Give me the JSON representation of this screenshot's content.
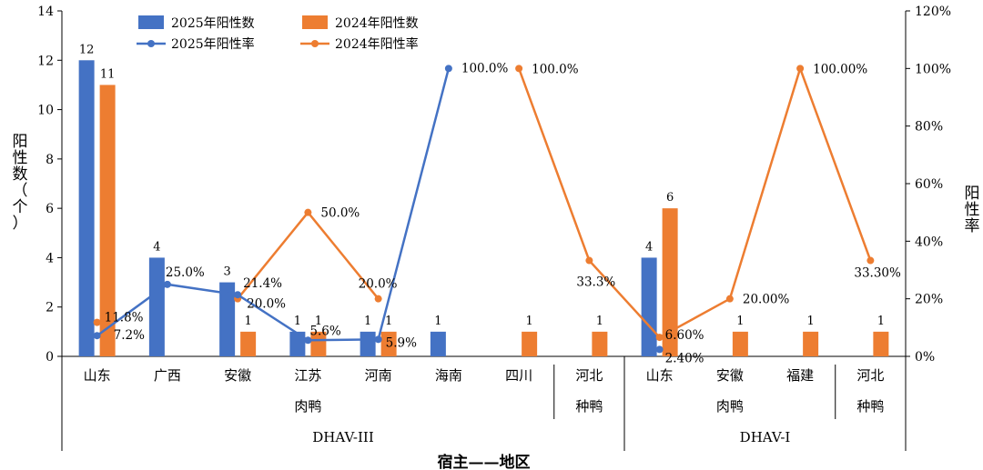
{
  "chart_data": {
    "type": "bar",
    "xlabel": "宿主——地区",
    "ylabel_left": "阳性数（个）",
    "ylabel_right": "阳性率",
    "ylim_left": [
      0,
      14
    ],
    "yticks_left": [
      "0",
      "2",
      "4",
      "6",
      "8",
      "10",
      "12",
      "14"
    ],
    "ylim_right": [
      0,
      1.2
    ],
    "yticks_right": [
      "0%",
      "20%",
      "40%",
      "60%",
      "80%",
      "100%",
      "120%"
    ],
    "categories": [
      "山东",
      "广西",
      "安徽",
      "江苏",
      "河南",
      "海南",
      "四川",
      "河北",
      "山东",
      "安徽",
      "福建",
      "河北"
    ],
    "hosts": [
      {
        "label": "肉鸭"
      },
      {
        "label": "种鸭"
      },
      {
        "label": "肉鸭"
      },
      {
        "label": "种鸭"
      }
    ],
    "groups": [
      {
        "label": "DHAV-III"
      },
      {
        "label": "DHAV-I"
      }
    ],
    "series": [
      {
        "name": "2025年阳性数",
        "kind": "bar",
        "color": "#4472C4",
        "values": [
          12,
          4,
          3,
          1,
          1,
          1,
          null,
          null,
          4,
          null,
          null,
          null
        ]
      },
      {
        "name": "2024年阳性数",
        "kind": "bar",
        "color": "#ED7D31",
        "values": [
          11,
          null,
          1,
          1,
          1,
          null,
          1,
          1,
          6,
          1,
          1,
          1
        ]
      },
      {
        "name": "2025年阳性率",
        "kind": "line",
        "color": "#4472C4",
        "segments": [
          {
            "indices": [
              0,
              1,
              2,
              3,
              4,
              5
            ],
            "values": [
              0.072,
              0.25,
              0.214,
              0.056,
              0.059,
              1.0
            ]
          },
          {
            "indices": [
              8
            ],
            "values": [
              0.024
            ]
          }
        ],
        "labels": [
          "7.2%",
          "25.0%",
          "21.4%",
          "5.6%",
          "5.9%",
          "100.0%",
          "2.40%"
        ]
      },
      {
        "name": "2024年阳性率",
        "kind": "line",
        "color": "#ED7D31",
        "segments": [
          {
            "indices": [
              0
            ],
            "values": [
              0.118
            ]
          },
          {
            "indices": [
              2,
              3,
              4
            ],
            "values": [
              0.2,
              0.5,
              0.2
            ]
          },
          {
            "indices": [
              6,
              7,
              8,
              9,
              10,
              11
            ],
            "values": [
              1.0,
              0.333,
              0.066,
              0.2,
              1.0,
              0.333
            ]
          }
        ],
        "labels": [
          "11.8%",
          "20.0%",
          "50.0%",
          "20.0%",
          "100.0%",
          "33.3%",
          "6.60%",
          "20.00%",
          "100.00%",
          "33.30%"
        ]
      }
    ]
  }
}
